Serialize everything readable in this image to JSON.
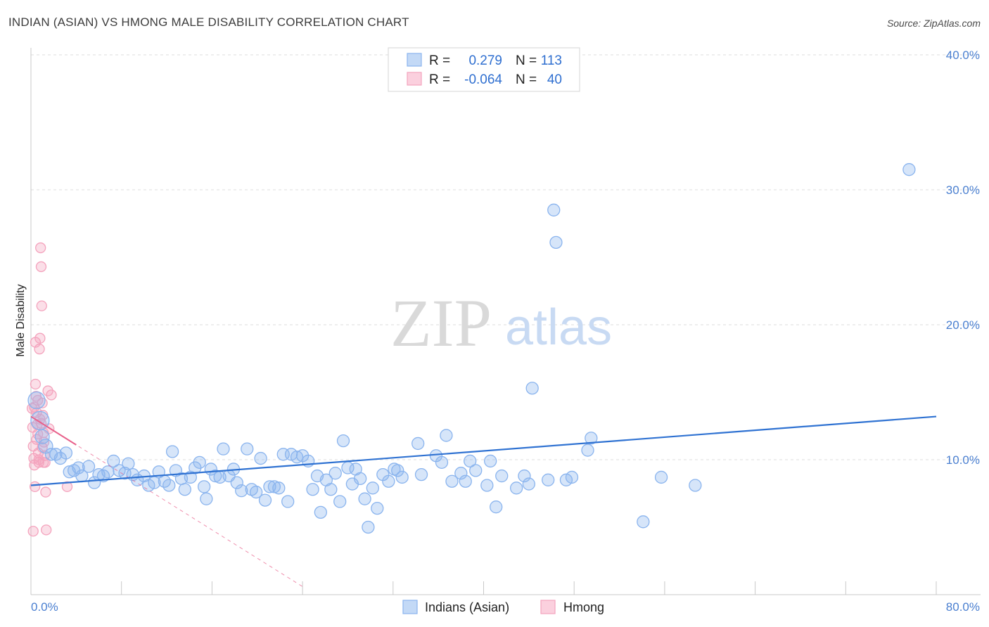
{
  "title": "INDIAN (ASIAN) VS HMONG MALE DISABILITY CORRELATION CHART",
  "source": "Source: ZipAtlas.com",
  "watermark": {
    "zip": "ZIP",
    "atlas": "atlas"
  },
  "colors": {
    "blue": "#8ab4ee",
    "blue_line": "#2f72d2",
    "pink": "#f4a3bd",
    "pink_line": "#e8608a",
    "axis_text": "#4a7fd0",
    "grid": "#dcdcdc"
  },
  "legend": {
    "rows": [
      {
        "r_label": "R =",
        "r_value": "0.279",
        "n_label": "N =",
        "n_value": "113",
        "color": "blue"
      },
      {
        "r_label": "R =",
        "r_value": "-0.064",
        "n_label": "N =",
        "n_value": "40",
        "color": "pink"
      }
    ],
    "series": [
      {
        "label": "Indians (Asian)",
        "color": "blue"
      },
      {
        "label": "Hmong",
        "color": "pink"
      }
    ]
  },
  "chart_data": {
    "type": "scatter",
    "ylabel": "Male Disability",
    "xlim": [
      0,
      80
    ],
    "ylim": [
      0,
      40
    ],
    "x_tick_labels": [
      "0.0%",
      "80.0%"
    ],
    "y_ticks": [
      10,
      20,
      30,
      40
    ],
    "y_tick_labels": [
      "10.0%",
      "20.0%",
      "30.0%",
      "40.0%"
    ],
    "grid": true,
    "legend_position": "top-center",
    "series": [
      {
        "name": "Indians (Asian)",
        "color": "blue",
        "trend": {
          "x": [
            0,
            80
          ],
          "y": [
            8.1,
            13.2
          ]
        },
        "points": [
          [
            0.5,
            14.4
          ],
          [
            0.8,
            12.9
          ],
          [
            1.0,
            11.7
          ],
          [
            1.3,
            11.0
          ],
          [
            1.8,
            10.4
          ],
          [
            2.2,
            10.4
          ],
          [
            2.6,
            10.1
          ],
          [
            3.1,
            10.5
          ],
          [
            3.4,
            9.1
          ],
          [
            3.8,
            9.2
          ],
          [
            4.2,
            9.4
          ],
          [
            4.5,
            8.8
          ],
          [
            5.1,
            9.5
          ],
          [
            5.6,
            8.3
          ],
          [
            6.0,
            8.9
          ],
          [
            6.4,
            8.8
          ],
          [
            6.8,
            9.1
          ],
          [
            7.3,
            9.9
          ],
          [
            7.8,
            9.2
          ],
          [
            8.3,
            9.0
          ],
          [
            8.6,
            9.7
          ],
          [
            9.0,
            8.9
          ],
          [
            9.4,
            8.5
          ],
          [
            10.0,
            8.8
          ],
          [
            10.4,
            8.1
          ],
          [
            10.9,
            8.3
          ],
          [
            11.3,
            9.1
          ],
          [
            11.8,
            8.4
          ],
          [
            12.2,
            8.1
          ],
          [
            12.5,
            10.6
          ],
          [
            12.8,
            9.2
          ],
          [
            13.3,
            8.6
          ],
          [
            13.6,
            7.8
          ],
          [
            14.1,
            8.7
          ],
          [
            14.5,
            9.4
          ],
          [
            14.9,
            9.8
          ],
          [
            15.3,
            8.0
          ],
          [
            15.5,
            7.1
          ],
          [
            15.9,
            9.3
          ],
          [
            16.3,
            8.8
          ],
          [
            16.7,
            8.7
          ],
          [
            17.0,
            10.8
          ],
          [
            17.5,
            8.8
          ],
          [
            17.9,
            9.3
          ],
          [
            18.2,
            8.3
          ],
          [
            18.6,
            7.7
          ],
          [
            19.1,
            10.8
          ],
          [
            19.5,
            7.8
          ],
          [
            19.9,
            7.6
          ],
          [
            20.3,
            10.1
          ],
          [
            20.7,
            7.0
          ],
          [
            21.1,
            8.0
          ],
          [
            21.5,
            8.0
          ],
          [
            21.9,
            7.9
          ],
          [
            22.3,
            10.4
          ],
          [
            22.7,
            6.9
          ],
          [
            23.0,
            10.4
          ],
          [
            23.5,
            10.2
          ],
          [
            24.0,
            10.3
          ],
          [
            24.5,
            9.9
          ],
          [
            24.9,
            7.8
          ],
          [
            25.3,
            8.8
          ],
          [
            25.6,
            6.1
          ],
          [
            26.1,
            8.5
          ],
          [
            26.5,
            7.8
          ],
          [
            26.9,
            9.0
          ],
          [
            27.3,
            6.9
          ],
          [
            27.6,
            11.4
          ],
          [
            28.0,
            9.4
          ],
          [
            28.4,
            8.2
          ],
          [
            28.7,
            9.3
          ],
          [
            29.1,
            8.6
          ],
          [
            29.5,
            7.1
          ],
          [
            29.8,
            5.0
          ],
          [
            30.2,
            7.9
          ],
          [
            30.6,
            6.4
          ],
          [
            31.1,
            8.9
          ],
          [
            31.6,
            8.4
          ],
          [
            32.1,
            9.3
          ],
          [
            32.4,
            9.2
          ],
          [
            32.8,
            8.7
          ],
          [
            34.2,
            11.2
          ],
          [
            34.5,
            8.9
          ],
          [
            35.8,
            10.3
          ],
          [
            36.3,
            9.8
          ],
          [
            36.7,
            11.8
          ],
          [
            37.2,
            8.4
          ],
          [
            38.0,
            9.0
          ],
          [
            38.4,
            8.4
          ],
          [
            38.8,
            9.9
          ],
          [
            39.3,
            9.2
          ],
          [
            40.3,
            8.1
          ],
          [
            40.6,
            9.9
          ],
          [
            41.1,
            6.5
          ],
          [
            41.6,
            8.8
          ],
          [
            42.9,
            7.9
          ],
          [
            43.6,
            8.8
          ],
          [
            44.0,
            8.2
          ],
          [
            44.3,
            15.3
          ],
          [
            45.7,
            8.5
          ],
          [
            46.2,
            28.5
          ],
          [
            46.4,
            26.1
          ],
          [
            47.3,
            8.5
          ],
          [
            47.8,
            8.7
          ],
          [
            49.2,
            10.7
          ],
          [
            49.5,
            11.6
          ],
          [
            54.1,
            5.4
          ],
          [
            55.7,
            8.7
          ],
          [
            58.7,
            8.1
          ],
          [
            77.6,
            31.5
          ]
        ]
      },
      {
        "name": "Hmong",
        "color": "pink",
        "trend": {
          "x": [
            0,
            4
          ],
          "y": [
            13.2,
            11.1
          ]
        },
        "trend_dashed": {
          "x": [
            0,
            24
          ],
          "y": [
            13.2,
            0.6
          ]
        },
        "points": [
          [
            0.1,
            13.8
          ],
          [
            0.15,
            12.4
          ],
          [
            0.2,
            11.0
          ],
          [
            0.25,
            10.1
          ],
          [
            0.3,
            9.6
          ],
          [
            0.35,
            8.0
          ],
          [
            0.4,
            15.6
          ],
          [
            0.45,
            14.7
          ],
          [
            0.5,
            13.5
          ],
          [
            0.55,
            12.6
          ],
          [
            0.6,
            11.9
          ],
          [
            0.65,
            10.5
          ],
          [
            0.7,
            10.0
          ],
          [
            0.75,
            18.2
          ],
          [
            0.8,
            19.0
          ],
          [
            0.85,
            25.7
          ],
          [
            0.9,
            24.3
          ],
          [
            0.95,
            21.4
          ],
          [
            1.0,
            14.2
          ],
          [
            1.05,
            13.3
          ],
          [
            1.1,
            12.0
          ],
          [
            1.15,
            11.3
          ],
          [
            1.2,
            10.3
          ],
          [
            1.25,
            9.8
          ],
          [
            1.3,
            7.6
          ],
          [
            1.35,
            4.8
          ],
          [
            0.2,
            4.7
          ],
          [
            0.6,
            14.4
          ],
          [
            0.8,
            13.0
          ],
          [
            1.0,
            10.9
          ],
          [
            1.1,
            9.8
          ],
          [
            1.5,
            15.1
          ],
          [
            1.6,
            12.3
          ],
          [
            0.4,
            18.7
          ],
          [
            0.5,
            11.5
          ],
          [
            0.7,
            9.8
          ],
          [
            1.8,
            14.8
          ],
          [
            0.9,
            12.7
          ],
          [
            0.3,
            13.9
          ],
          [
            3.2,
            8.0
          ]
        ]
      }
    ]
  }
}
